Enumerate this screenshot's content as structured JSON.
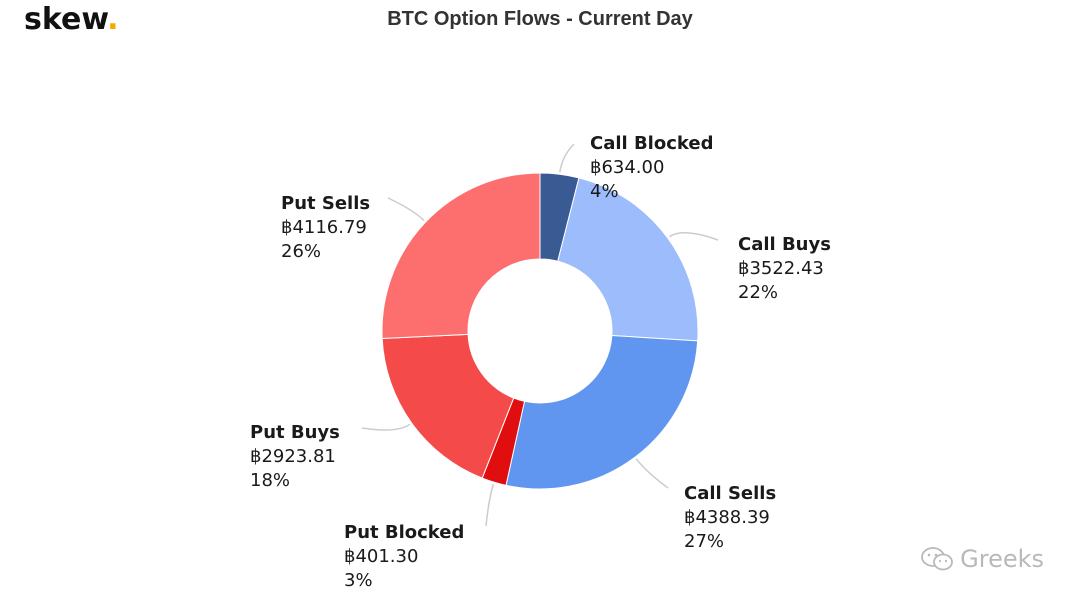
{
  "brand": {
    "name": "skew",
    "dot": ".",
    "dot_color": "#f2a900"
  },
  "chart_data": {
    "type": "pie",
    "variant": "donut",
    "title": "BTC Option Flows - Current Day",
    "currency_symbol": "฿",
    "slices": [
      {
        "label": "Call Blocked",
        "value_text": "฿634.00",
        "percent_text": "4%",
        "value": 634.0,
        "color": "#3a5a94"
      },
      {
        "label": "Call Buys",
        "value_text": "฿3522.43",
        "percent_text": "22%",
        "value": 3522.43,
        "color": "#9dbcfb"
      },
      {
        "label": "Call Sells",
        "value_text": "฿4388.39",
        "percent_text": "27%",
        "value": 4388.39,
        "color": "#6196f0"
      },
      {
        "label": "Put Blocked",
        "value_text": "฿401.30",
        "percent_text": "3%",
        "value": 401.3,
        "color": "#e00e0e"
      },
      {
        "label": "Put Buys",
        "value_text": "฿2923.81",
        "percent_text": "18%",
        "value": 2923.81,
        "color": "#f44a4a"
      },
      {
        "label": "Put Sells",
        "value_text": "฿4116.79",
        "percent_text": "26%",
        "value": 4116.79,
        "color": "#fd6f6f"
      }
    ],
    "legend": "none",
    "grid": false
  },
  "watermark": {
    "text": "Greeks",
    "icon": "wechat-icon"
  }
}
